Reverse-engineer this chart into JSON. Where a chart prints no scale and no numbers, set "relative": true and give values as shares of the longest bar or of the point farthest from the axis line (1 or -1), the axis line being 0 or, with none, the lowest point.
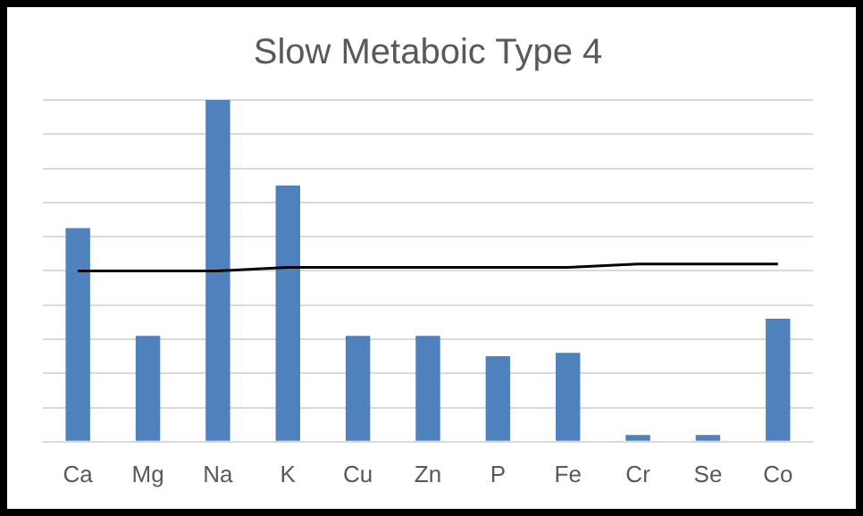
{
  "chart_data": {
    "type": "bar",
    "title": "Slow Metaboic Type 4",
    "relative": true,
    "grid": "y",
    "categories": [
      "Ca",
      "Mg",
      "Na",
      "K",
      "Cu",
      "Zn",
      "P",
      "Fe",
      "Cr",
      "Se",
      "Co"
    ],
    "series": [
      {
        "color": "#4f81bd",
        "values": [
          0.625,
          0.31,
          1,
          0.75,
          0.31,
          0.31,
          0.25,
          0.26,
          0.02,
          0.02,
          0.36
        ]
      },
      {
        "type": "line",
        "color": "#000000",
        "values": [
          0.5,
          0.5,
          0.5,
          0.51,
          0.51,
          0.51,
          0.51,
          0.51,
          0.52,
          0.52,
          0.52
        ]
      }
    ]
  }
}
